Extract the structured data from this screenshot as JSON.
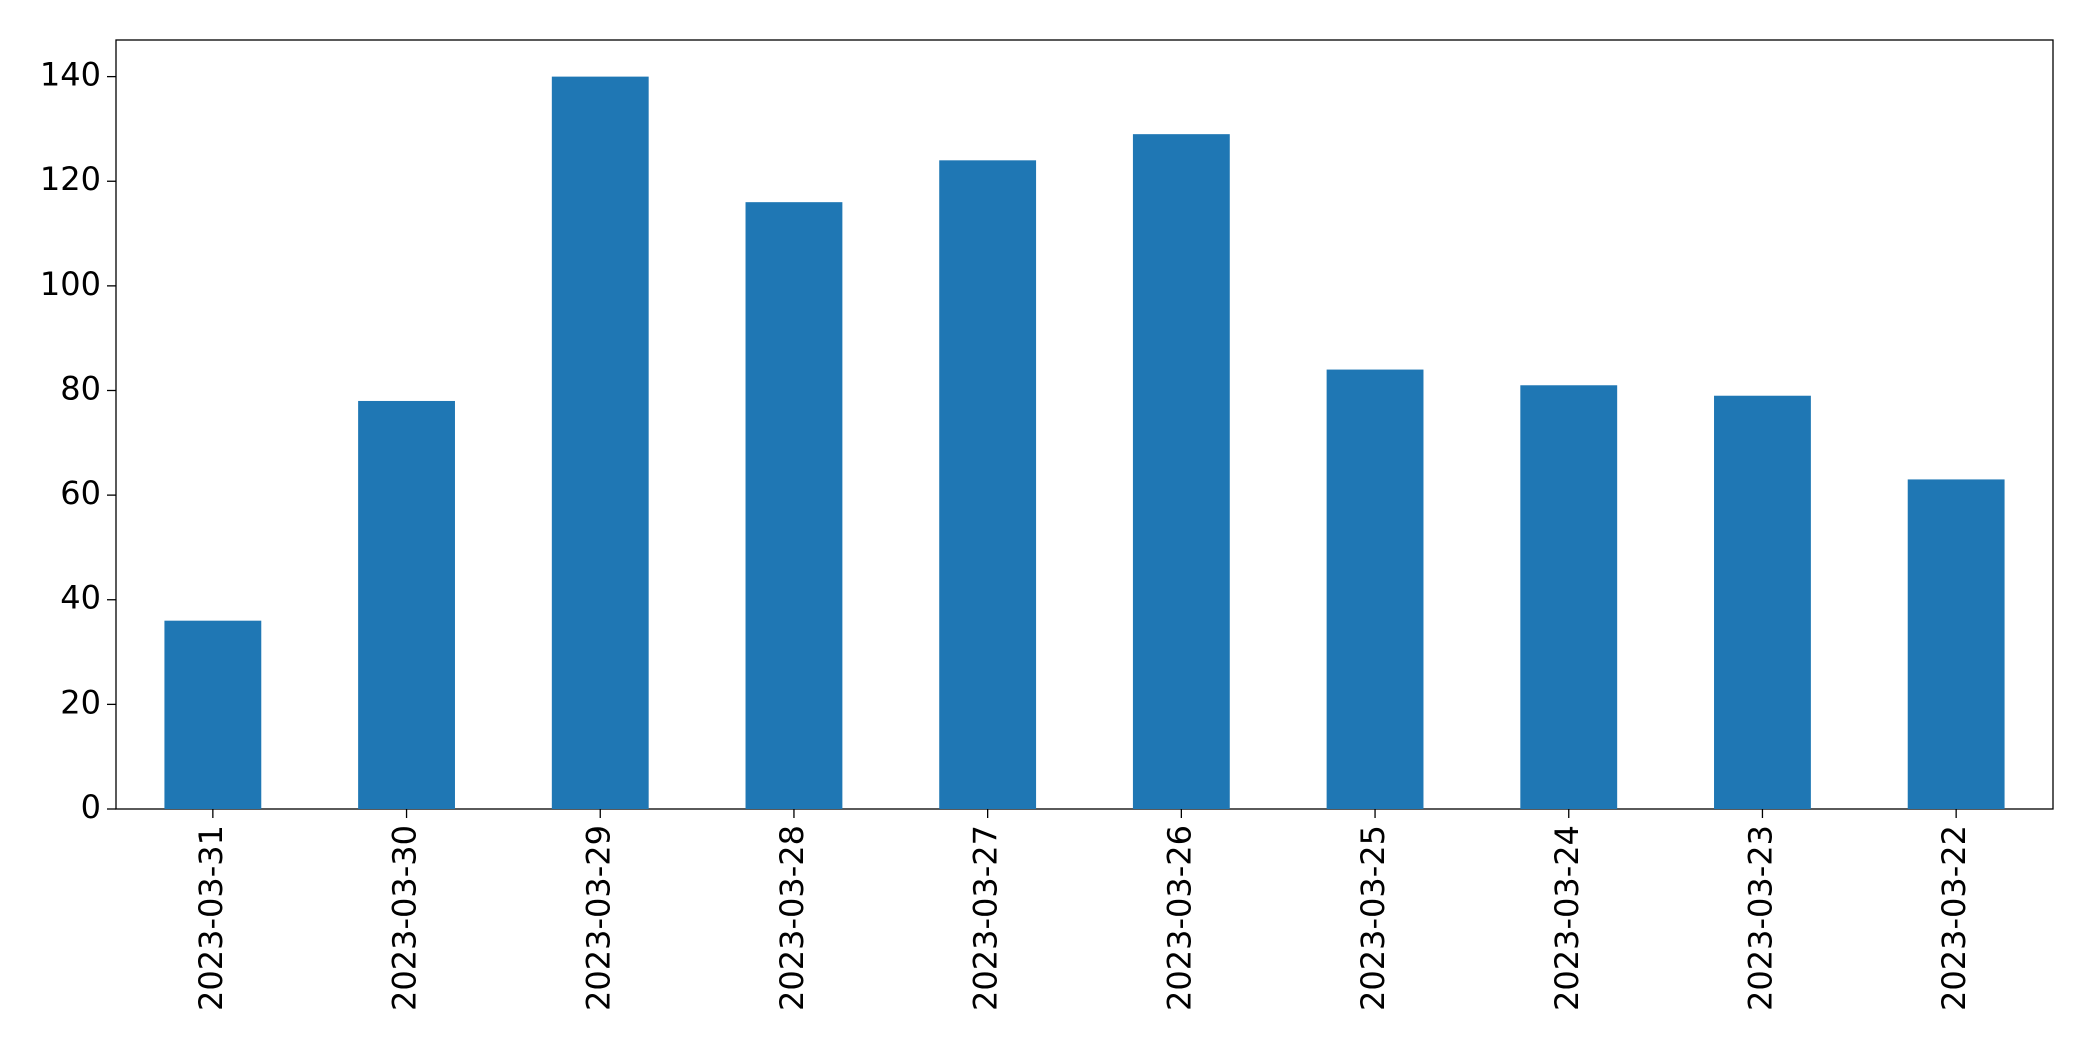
{
  "chart_data": {
    "type": "bar",
    "categories": [
      "2023-03-31",
      "2023-03-30",
      "2023-03-29",
      "2023-03-28",
      "2023-03-27",
      "2023-03-26",
      "2023-03-25",
      "2023-03-24",
      "2023-03-23",
      "2023-03-22"
    ],
    "values": [
      36,
      78,
      140,
      116,
      124,
      129,
      84,
      81,
      79,
      63
    ],
    "color": "#1f77b4",
    "ylim": [
      0,
      147
    ],
    "yticks": [
      0,
      20,
      40,
      60,
      80,
      100,
      120,
      140
    ],
    "grid": false
  }
}
